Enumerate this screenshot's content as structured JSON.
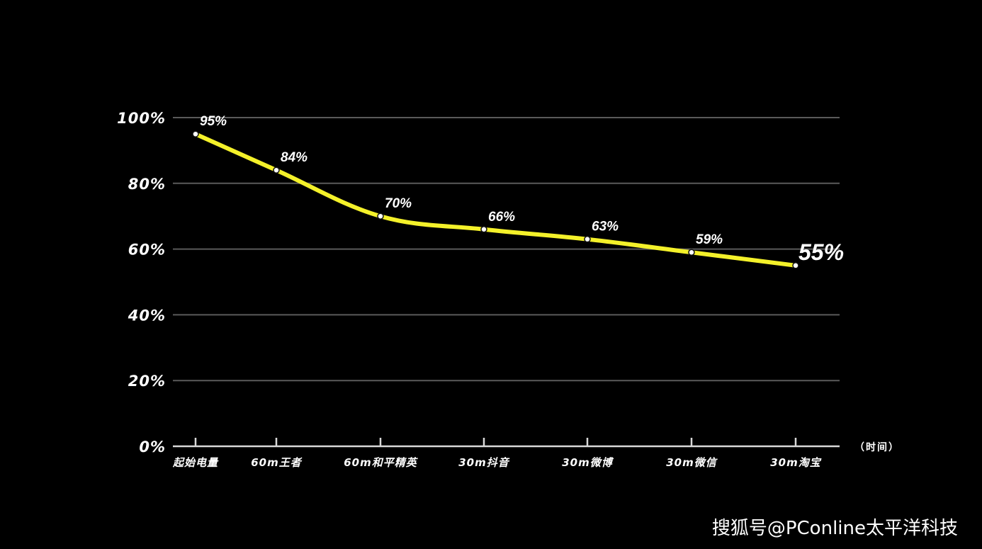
{
  "chart_data": {
    "type": "line",
    "categories": [
      "起始电量",
      "60m王者",
      "60m和平精英",
      "30m抖音",
      "30m微博",
      "30m微信",
      "30m淘宝"
    ],
    "values": [
      95,
      84,
      70,
      66,
      63,
      59,
      55
    ],
    "data_labels": [
      "95%",
      "84%",
      "70%",
      "66%",
      "63%",
      "59%",
      "55%"
    ],
    "ylim": [
      0,
      100
    ],
    "yticks": [
      0,
      20,
      40,
      60,
      80,
      100
    ],
    "ytick_labels": [
      "0%",
      "20%",
      "40%",
      "60%",
      "80%",
      "100%"
    ],
    "xunit": "（时间）",
    "grid": true,
    "line_color": "#f4f12a",
    "grid_color": "#5a5a5a",
    "background": "#000000"
  },
  "watermark": "搜狐号@PConline太平洋科技"
}
